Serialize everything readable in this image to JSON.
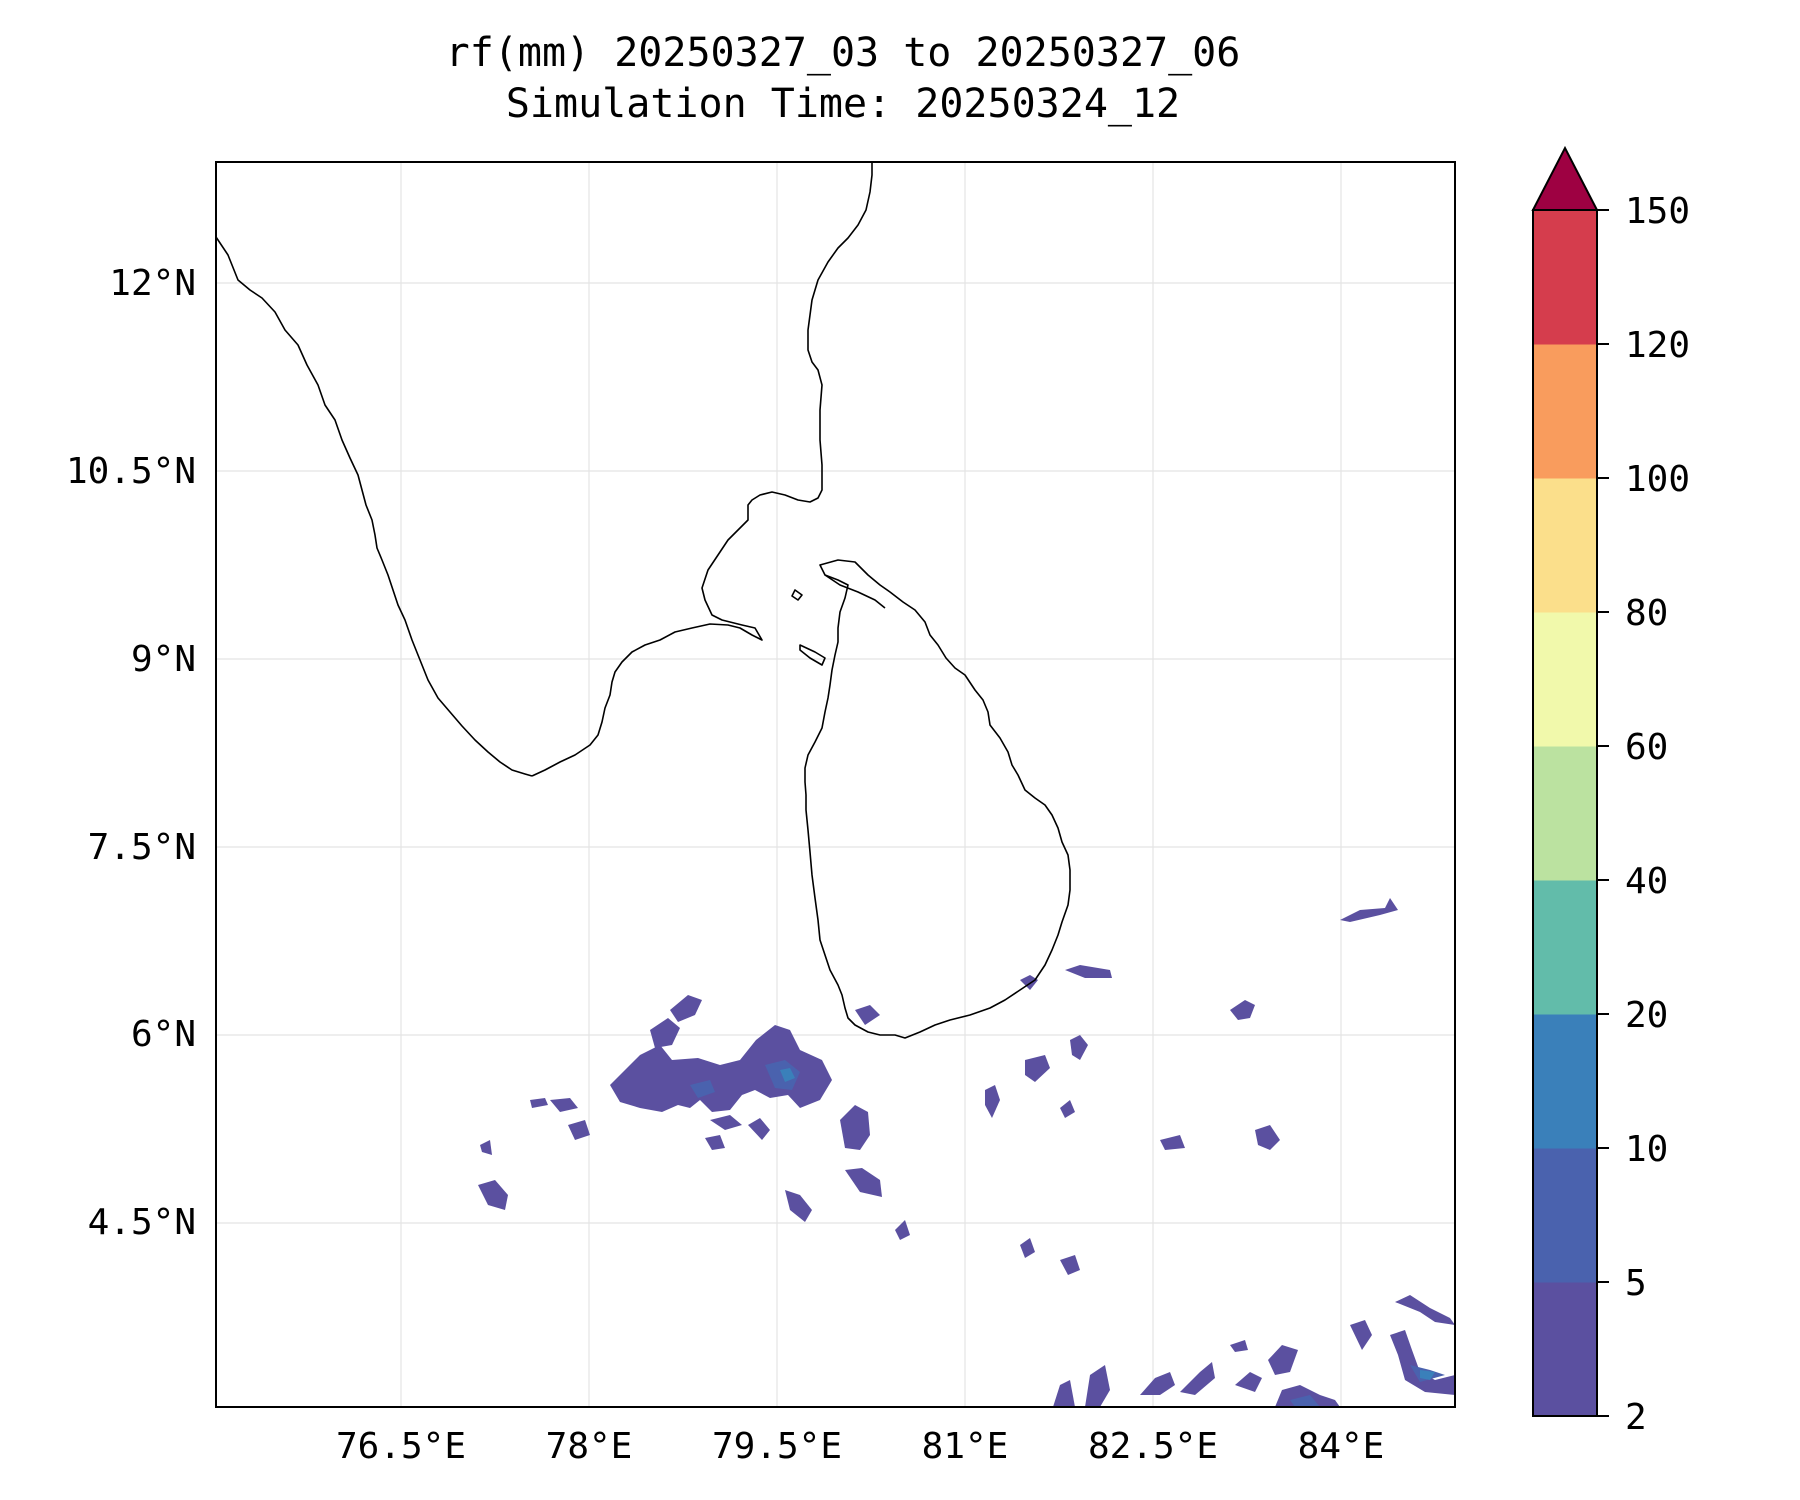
{
  "title": {
    "line1": "rf(mm) 20250327_03 to 20250327_06",
    "line2": "Simulation Time: 20250324_12"
  },
  "axes": {
    "lon_range": [
      75.0,
      84.9
    ],
    "lat_range": [
      3.2,
      13.2
    ],
    "lon_ticks": [
      76.5,
      78.0,
      79.5,
      81.0,
      82.5,
      84.0
    ],
    "lon_tick_labels": [
      "76.5°E",
      "78°E",
      "79.5°E",
      "81°E",
      "82.5°E",
      "84°E"
    ],
    "lat_ticks": [
      12.0,
      10.5,
      9.0,
      7.5,
      6.0,
      4.5
    ],
    "lat_tick_labels": [
      "12°N",
      "10.5°N",
      "9°N",
      "7.5°N",
      "6°N",
      "4.5°N"
    ],
    "gridlines": true
  },
  "colorbar": {
    "levels": [
      "2",
      "5",
      "10",
      "20",
      "40",
      "60",
      "80",
      "100",
      "120",
      "150"
    ],
    "colors": [
      "#5b50a0",
      "#4a62ae",
      "#3a80ba",
      "#62bcaa",
      "#bbe2a0",
      "#f1f9ab",
      "#fbdf8b",
      "#f99c5d",
      "#d53d4d"
    ],
    "extend_color": "#9e0142",
    "extend": "max"
  },
  "map_layers": [
    "coastline-india",
    "coastline-sri-lanka",
    "rainfall-contours"
  ],
  "chart_data": {
    "type": "heatmap",
    "title": "rf(mm) 20250327_03 to 20250327_06",
    "subtitle": "Simulation Time: 20250324_12",
    "xlim": [
      75.0,
      84.9
    ],
    "ylim": [
      3.2,
      13.2
    ],
    "cells": [
      {
        "lon": 78.8,
        "lat": 5.65,
        "value": 4
      },
      {
        "lon": 79.6,
        "lat": 5.7,
        "value": 6
      },
      {
        "lon": 79.7,
        "lat": 5.55,
        "value": 8
      },
      {
        "lon": 78.6,
        "lat": 5.85,
        "value": 4
      },
      {
        "lon": 78.3,
        "lat": 5.55,
        "value": 3
      },
      {
        "lon": 80.2,
        "lat": 5.2,
        "value": 3
      },
      {
        "lon": 80.2,
        "lat": 4.6,
        "value": 3
      },
      {
        "lon": 77.2,
        "lat": 4.5,
        "value": 3
      },
      {
        "lon": 81.2,
        "lat": 5.35,
        "value": 3
      },
      {
        "lon": 80.7,
        "lat": 6.05,
        "value": 3
      },
      {
        "lon": 81.5,
        "lat": 6.4,
        "value": 3
      },
      {
        "lon": 84.2,
        "lat": 7.0,
        "value": 3
      },
      {
        "lon": 84.7,
        "lat": 3.2,
        "value": 8
      },
      {
        "lon": 83.9,
        "lat": 3.2,
        "value": 7
      },
      {
        "lon": 82.6,
        "lat": 3.3,
        "value": 3
      },
      {
        "lon": 79.2,
        "lat": 5.0,
        "value": 3
      }
    ]
  }
}
